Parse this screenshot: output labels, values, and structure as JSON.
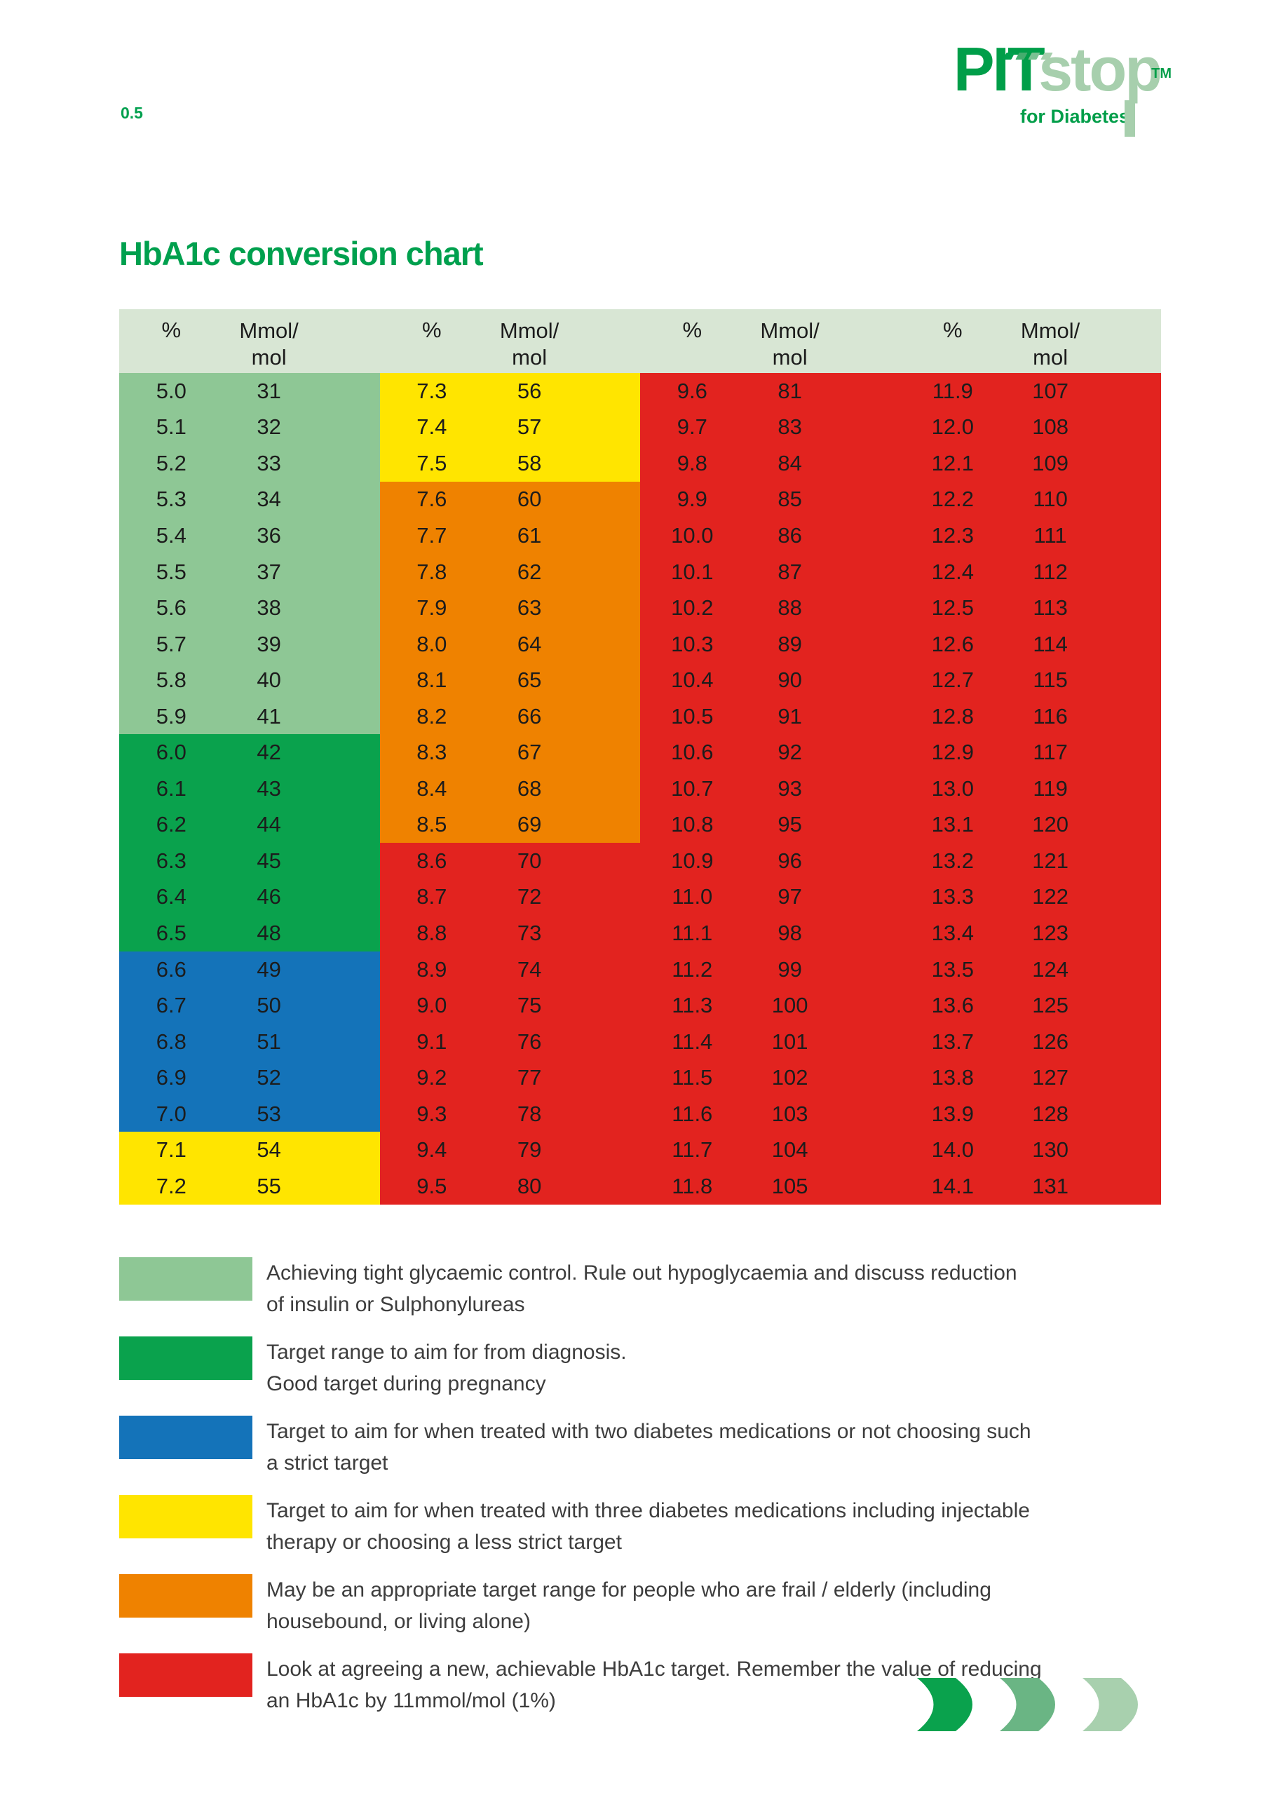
{
  "page": {
    "number": "0.5"
  },
  "logo": {
    "word1": "PIT",
    "word2": "stop",
    "tm": "TM",
    "tagline": "for Diabetes"
  },
  "title": "HbA1c conversion chart",
  "colors": {
    "title_green": "#00a04e",
    "logo_dark_green": "#009e49",
    "logo_light_green": "#a7cfad",
    "header_bg": "#d8e6d4",
    "light_green": "#8ec795",
    "green": "#0aa24d",
    "blue": "#1473b9",
    "yellow": "#ffe500",
    "orange": "#ef8200",
    "red": "#e2231f",
    "cell_text": "#1c1c1c",
    "legend_text": "#3d3d3d",
    "dash_colors": [
      "#00a04e",
      "#44ad6e",
      "#7cc193",
      "#a7cfad"
    ],
    "crescents": [
      "#0aa24d",
      "#6ab584",
      "#a8d0ae"
    ]
  },
  "table": {
    "header": {
      "pct": "%",
      "mmol_line1": "Mmol/",
      "mmol_line2": "mol"
    },
    "groups": [
      {
        "rows": [
          {
            "pct": "5.0",
            "mmol": "31",
            "color": "light_green"
          },
          {
            "pct": "5.1",
            "mmol": "32",
            "color": "light_green"
          },
          {
            "pct": "5.2",
            "mmol": "33",
            "color": "light_green"
          },
          {
            "pct": "5.3",
            "mmol": "34",
            "color": "light_green"
          },
          {
            "pct": "5.4",
            "mmol": "36",
            "color": "light_green"
          },
          {
            "pct": "5.5",
            "mmol": "37",
            "color": "light_green"
          },
          {
            "pct": "5.6",
            "mmol": "38",
            "color": "light_green"
          },
          {
            "pct": "5.7",
            "mmol": "39",
            "color": "light_green"
          },
          {
            "pct": "5.8",
            "mmol": "40",
            "color": "light_green"
          },
          {
            "pct": "5.9",
            "mmol": "41",
            "color": "light_green"
          },
          {
            "pct": "6.0",
            "mmol": "42",
            "color": "green"
          },
          {
            "pct": "6.1",
            "mmol": "43",
            "color": "green"
          },
          {
            "pct": "6.2",
            "mmol": "44",
            "color": "green"
          },
          {
            "pct": "6.3",
            "mmol": "45",
            "color": "green"
          },
          {
            "pct": "6.4",
            "mmol": "46",
            "color": "green"
          },
          {
            "pct": "6.5",
            "mmol": "48",
            "color": "green"
          },
          {
            "pct": "6.6",
            "mmol": "49",
            "color": "blue"
          },
          {
            "pct": "6.7",
            "mmol": "50",
            "color": "blue"
          },
          {
            "pct": "6.8",
            "mmol": "51",
            "color": "blue"
          },
          {
            "pct": "6.9",
            "mmol": "52",
            "color": "blue"
          },
          {
            "pct": "7.0",
            "mmol": "53",
            "color": "blue"
          },
          {
            "pct": "7.1",
            "mmol": "54",
            "color": "yellow"
          },
          {
            "pct": "7.2",
            "mmol": "55",
            "color": "yellow"
          }
        ]
      },
      {
        "rows": [
          {
            "pct": "7.3",
            "mmol": "56",
            "color": "yellow"
          },
          {
            "pct": "7.4",
            "mmol": "57",
            "color": "yellow"
          },
          {
            "pct": "7.5",
            "mmol": "58",
            "color": "yellow"
          },
          {
            "pct": "7.6",
            "mmol": "60",
            "color": "orange"
          },
          {
            "pct": "7.7",
            "mmol": "61",
            "color": "orange"
          },
          {
            "pct": "7.8",
            "mmol": "62",
            "color": "orange"
          },
          {
            "pct": "7.9",
            "mmol": "63",
            "color": "orange"
          },
          {
            "pct": "8.0",
            "mmol": "64",
            "color": "orange"
          },
          {
            "pct": "8.1",
            "mmol": "65",
            "color": "orange"
          },
          {
            "pct": "8.2",
            "mmol": "66",
            "color": "orange"
          },
          {
            "pct": "8.3",
            "mmol": "67",
            "color": "orange"
          },
          {
            "pct": "8.4",
            "mmol": "68",
            "color": "orange"
          },
          {
            "pct": "8.5",
            "mmol": "69",
            "color": "orange"
          },
          {
            "pct": "8.6",
            "mmol": "70",
            "color": "red"
          },
          {
            "pct": "8.7",
            "mmol": "72",
            "color": "red"
          },
          {
            "pct": "8.8",
            "mmol": "73",
            "color": "red"
          },
          {
            "pct": "8.9",
            "mmol": "74",
            "color": "red"
          },
          {
            "pct": "9.0",
            "mmol": "75",
            "color": "red"
          },
          {
            "pct": "9.1",
            "mmol": "76",
            "color": "red"
          },
          {
            "pct": "9.2",
            "mmol": "77",
            "color": "red"
          },
          {
            "pct": "9.3",
            "mmol": "78",
            "color": "red"
          },
          {
            "pct": "9.4",
            "mmol": "79",
            "color": "red"
          },
          {
            "pct": "9.5",
            "mmol": "80",
            "color": "red"
          }
        ]
      },
      {
        "rows": [
          {
            "pct": "9.6",
            "mmol": "81",
            "color": "red"
          },
          {
            "pct": "9.7",
            "mmol": "83",
            "color": "red"
          },
          {
            "pct": "9.8",
            "mmol": "84",
            "color": "red"
          },
          {
            "pct": "9.9",
            "mmol": "85",
            "color": "red"
          },
          {
            "pct": "10.0",
            "mmol": "86",
            "color": "red"
          },
          {
            "pct": "10.1",
            "mmol": "87",
            "color": "red"
          },
          {
            "pct": "10.2",
            "mmol": "88",
            "color": "red"
          },
          {
            "pct": "10.3",
            "mmol": "89",
            "color": "red"
          },
          {
            "pct": "10.4",
            "mmol": "90",
            "color": "red"
          },
          {
            "pct": "10.5",
            "mmol": "91",
            "color": "red"
          },
          {
            "pct": "10.6",
            "mmol": "92",
            "color": "red"
          },
          {
            "pct": "10.7",
            "mmol": "93",
            "color": "red"
          },
          {
            "pct": "10.8",
            "mmol": "95",
            "color": "red"
          },
          {
            "pct": "10.9",
            "mmol": "96",
            "color": "red"
          },
          {
            "pct": "11.0",
            "mmol": "97",
            "color": "red"
          },
          {
            "pct": "11.1",
            "mmol": "98",
            "color": "red"
          },
          {
            "pct": "11.2",
            "mmol": "99",
            "color": "red"
          },
          {
            "pct": "11.3",
            "mmol": "100",
            "color": "red"
          },
          {
            "pct": "11.4",
            "mmol": "101",
            "color": "red"
          },
          {
            "pct": "11.5",
            "mmol": "102",
            "color": "red"
          },
          {
            "pct": "11.6",
            "mmol": "103",
            "color": "red"
          },
          {
            "pct": "11.7",
            "mmol": "104",
            "color": "red"
          },
          {
            "pct": "11.8",
            "mmol": "105",
            "color": "red"
          }
        ]
      },
      {
        "rows": [
          {
            "pct": "11.9",
            "mmol": "107",
            "color": "red"
          },
          {
            "pct": "12.0",
            "mmol": "108",
            "color": "red"
          },
          {
            "pct": "12.1",
            "mmol": "109",
            "color": "red"
          },
          {
            "pct": "12.2",
            "mmol": "110",
            "color": "red"
          },
          {
            "pct": "12.3",
            "mmol": "111",
            "color": "red"
          },
          {
            "pct": "12.4",
            "mmol": "112",
            "color": "red"
          },
          {
            "pct": "12.5",
            "mmol": "113",
            "color": "red"
          },
          {
            "pct": "12.6",
            "mmol": "114",
            "color": "red"
          },
          {
            "pct": "12.7",
            "mmol": "115",
            "color": "red"
          },
          {
            "pct": "12.8",
            "mmol": "116",
            "color": "red"
          },
          {
            "pct": "12.9",
            "mmol": "117",
            "color": "red"
          },
          {
            "pct": "13.0",
            "mmol": "119",
            "color": "red"
          },
          {
            "pct": "13.1",
            "mmol": "120",
            "color": "red"
          },
          {
            "pct": "13.2",
            "mmol": "121",
            "color": "red"
          },
          {
            "pct": "13.3",
            "mmol": "122",
            "color": "red"
          },
          {
            "pct": "13.4",
            "mmol": "123",
            "color": "red"
          },
          {
            "pct": "13.5",
            "mmol": "124",
            "color": "red"
          },
          {
            "pct": "13.6",
            "mmol": "125",
            "color": "red"
          },
          {
            "pct": "13.7",
            "mmol": "126",
            "color": "red"
          },
          {
            "pct": "13.8",
            "mmol": "127",
            "color": "red"
          },
          {
            "pct": "13.9",
            "mmol": "128",
            "color": "red"
          },
          {
            "pct": "14.0",
            "mmol": "130",
            "color": "red"
          },
          {
            "pct": "14.1",
            "mmol": "131",
            "color": "red"
          }
        ]
      }
    ]
  },
  "legend": {
    "items": [
      {
        "color": "light_green",
        "line1": "Achieving tight glycaemic control. Rule out hypoglycaemia and discuss reduction",
        "line2": "of insulin or Sulphonylureas"
      },
      {
        "color": "green",
        "line1": "Target range to aim for from diagnosis.",
        "line2": "Good target during pregnancy"
      },
      {
        "color": "blue",
        "line1": "Target to aim for when treated with two diabetes medications or not choosing such",
        "line2": "a strict target"
      },
      {
        "color": "yellow",
        "line1": "Target to aim for when treated with three diabetes medications including injectable",
        "line2": "therapy or choosing a less strict target"
      },
      {
        "color": "orange",
        "line1": "May be an appropriate target range for people who are frail / elderly (including",
        "line2": "housebound, or living alone)"
      },
      {
        "color": "red",
        "line1": "Look at agreeing a new, achievable HbA1c target. Remember the value of reducing",
        "line2": "an HbA1c by 11mmol/mol (1%)"
      }
    ]
  }
}
